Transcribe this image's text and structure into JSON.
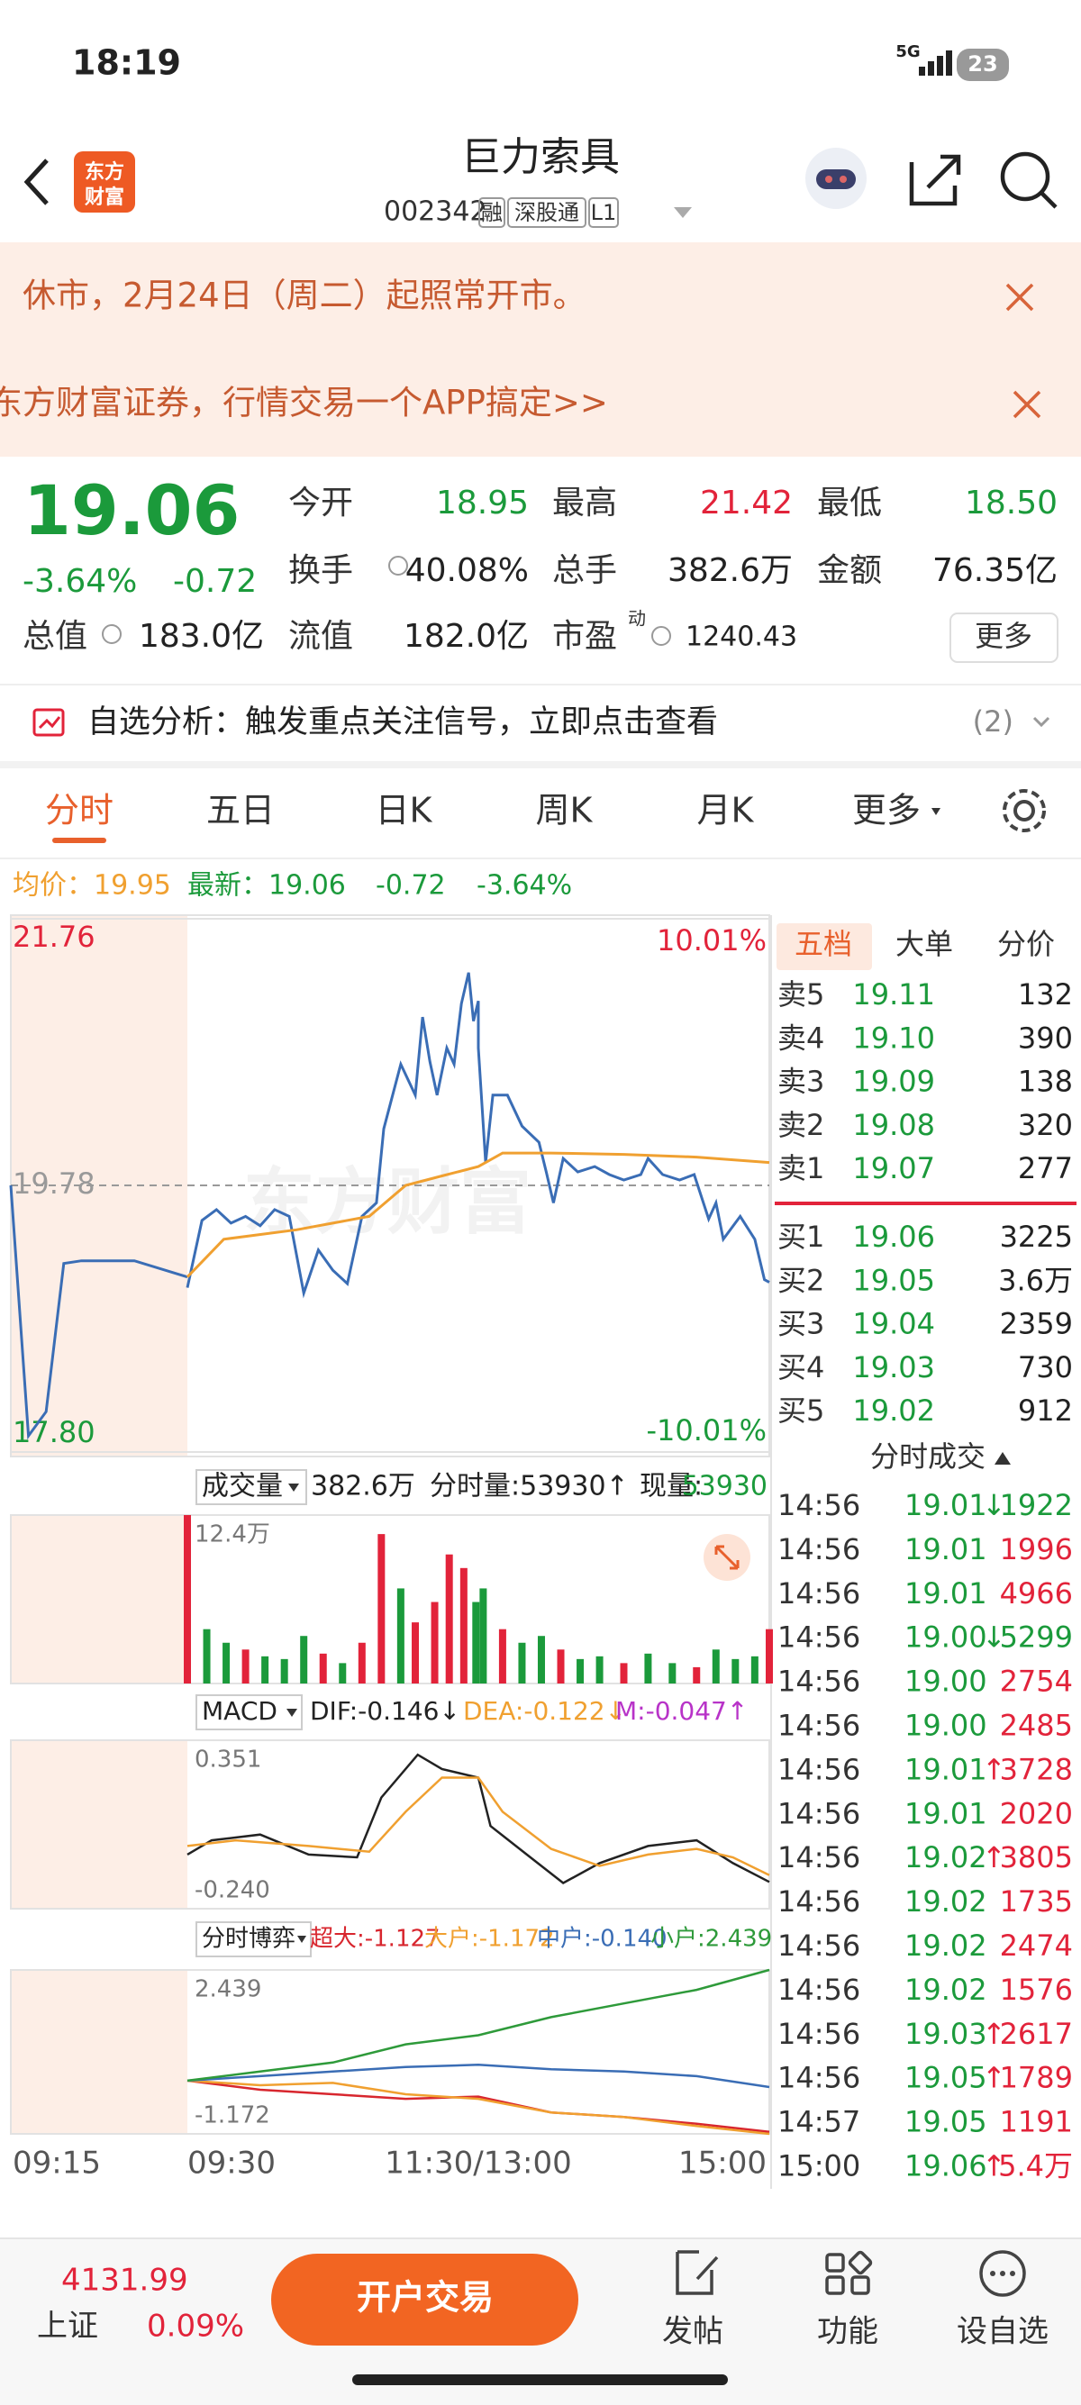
{
  "status": {
    "time": "18:19",
    "network": "5G",
    "battery": "23"
  },
  "header": {
    "logo": [
      "东方",
      "财富"
    ],
    "title": "巨力索具",
    "code": "002342",
    "tags": [
      "融",
      "深股通",
      "L1"
    ]
  },
  "banners": [
    "休市，2月24日（周二）起照常开市。",
    "东方财富证券，行情交易一个APP搞定>>"
  ],
  "quote": {
    "price": "19.06",
    "change_pct": "-3.64%",
    "change": "-0.72",
    "fields": [
      [
        "今开",
        "18.95"
      ],
      [
        "最高",
        "21.42"
      ],
      [
        "最低",
        "18.50"
      ],
      [
        "换手",
        "40.08%"
      ],
      [
        "总手",
        "382.6万"
      ],
      [
        "金额",
        "76.35亿"
      ],
      [
        "流值",
        "182.0亿"
      ],
      [
        "市盈",
        "1240.43"
      ]
    ],
    "total": [
      "总值",
      "183.0亿"
    ],
    "pe_sup": "动",
    "more": "更多"
  },
  "alert": {
    "text": "自选分析：触发重点关注信号，立即点击查看",
    "count": "(2)"
  },
  "tabs": [
    "分时",
    "五日",
    "日K",
    "周K",
    "月K",
    "更多"
  ],
  "info": {
    "avg": "均价：19.95",
    "last": "最新：19.06",
    "change": "-0.72",
    "pct": "-3.64%"
  },
  "chart_data": [
    {
      "type": "line",
      "watermark": "东方财富",
      "ylim": [
        17.8,
        21.76
      ],
      "yticks": [
        {
          "value": 17.8,
          "label": "17.80"
        },
        19.78,
        21.76
      ],
      "right_labels": [
        "10.01%",
        "-10.01%"
      ],
      "xlabels": [
        "09:15",
        "09:30",
        "11:30/13:00",
        "15:00"
      ],
      "series": [
        {
          "color": "#3a6db5",
          "x": [
            "09:15",
            "09:16",
            "09:17",
            "09:18",
            "09:19",
            "09:22",
            "09:25"
          ],
          "values": [
            19.78,
            17.92,
            18.1,
            19.2,
            19.22,
            19.22,
            19.1
          ]
        },
        {
          "color": "#3a6db5",
          "x": [
            "09:30",
            "09:36",
            "09:42",
            "09:48",
            "09:54",
            "10:00",
            "10:06",
            "10:12",
            "10:18",
            "10:24",
            "10:30",
            "10:36",
            "10:42",
            "10:48",
            "10:51",
            "10:58",
            "11:04",
            "11:07",
            "11:10",
            "11:13",
            "11:17",
            "11:20",
            "11:23",
            "11:26",
            "11:28",
            "11:30",
            "13:00",
            "13:03",
            "13:06",
            "13:12",
            "13:18",
            "13:25",
            "13:28",
            "13:31",
            "13:35",
            "13:41",
            "13:48",
            "13:54",
            "14:00",
            "14:07",
            "14:10",
            "14:16",
            "14:23",
            "14:29",
            "14:35",
            "14:38",
            "14:41",
            "14:48",
            "14:54",
            "14:58",
            "15:00"
          ],
          "values": [
            19.02,
            19.52,
            19.6,
            19.5,
            19.55,
            19.48,
            19.6,
            19.55,
            18.98,
            19.3,
            19.15,
            19.05,
            19.55,
            19.65,
            20.2,
            20.68,
            20.45,
            21.03,
            20.7,
            20.45,
            20.8,
            20.68,
            21.13,
            21.36,
            21.0,
            21.15,
            20.8,
            19.95,
            20.45,
            20.45,
            20.22,
            20.1,
            19.88,
            19.65,
            19.98,
            19.88,
            19.92,
            19.86,
            19.82,
            19.86,
            19.98,
            19.86,
            19.82,
            19.86,
            19.53,
            19.65,
            19.38,
            19.55,
            19.38,
            19.08,
            19.06
          ]
        },
        {
          "color": "#f0a030",
          "x": [
            "09:30",
            "09:45",
            "10:15",
            "10:45",
            "11:00",
            "11:15",
            "11:30",
            "13:10",
            "13:30",
            "14:00",
            "14:30",
            "15:00"
          ],
          "values": [
            19.1,
            19.38,
            19.45,
            19.55,
            19.78,
            19.85,
            19.92,
            20.02,
            20.02,
            20.01,
            19.99,
            19.95
          ]
        }
      ]
    },
    {
      "type": "bar",
      "title": "成交量",
      "total": "382.6万",
      "period_vol": "分时量:53930↑",
      "cur_label": "现量:",
      "cur_value": "53930",
      "ylim": [
        0,
        124000
      ],
      "yticks": [
        {
          "value": 124000,
          "label": "12.4万"
        }
      ],
      "x": [
        "09:30",
        "09:38",
        "09:46",
        "09:54",
        "10:02",
        "10:10",
        "10:18",
        "10:26",
        "10:34",
        "10:42",
        "10:50",
        "10:58",
        "11:04",
        "11:12",
        "11:18",
        "11:24",
        "11:29",
        "13:02",
        "13:10",
        "13:18",
        "13:26",
        "13:34",
        "13:42",
        "13:50",
        "14:00",
        "14:10",
        "14:20",
        "14:30",
        "14:38",
        "14:46",
        "14:54",
        "15:00"
      ],
      "values": [
        124000,
        40000,
        30000,
        25000,
        20000,
        18000,
        35000,
        22000,
        15000,
        30000,
        110000,
        70000,
        45000,
        60000,
        95000,
        85000,
        60000,
        70000,
        40000,
        30000,
        35000,
        25000,
        18000,
        20000,
        15000,
        22000,
        15000,
        12000,
        25000,
        18000,
        20000,
        40000
      ],
      "colors": [
        "#e2233a",
        "#1b9a3b",
        "#1b9a3b",
        "#e2233a",
        "#1b9a3b",
        "#1b9a3b",
        "#1b9a3b",
        "#e2233a",
        "#1b9a3b",
        "#e2233a",
        "#e2233a",
        "#1b9a3b",
        "#e2233a",
        "#e2233a",
        "#e2233a",
        "#e2233a",
        "#1b9a3b",
        "#1b9a3b",
        "#e2233a",
        "#1b9a3b",
        "#1b9a3b",
        "#e2233a",
        "#1b9a3b",
        "#1b9a3b",
        "#e2233a",
        "#1b9a3b",
        "#1b9a3b",
        "#e2233a",
        "#1b9a3b",
        "#1b9a3b",
        "#1b9a3b",
        "#e2233a"
      ]
    },
    {
      "type": "line",
      "title": "MACD",
      "extra_label": "M:-0.047↑",
      "ylim": [
        -0.24,
        0.351
      ],
      "yticks": [
        {
          "value": -0.24,
          "label": "-0.240"
        },
        0.351
      ],
      "series": [
        {
          "name": "DIF:-0.146↓",
          "color": "#222222",
          "x": [
            "09:30",
            "09:40",
            "10:00",
            "10:20",
            "10:40",
            "10:50",
            "11:05",
            "11:15",
            "11:30",
            "13:05",
            "13:20",
            "13:35",
            "13:50",
            "14:10",
            "14:30",
            "14:45",
            "15:00"
          ],
          "values": [
            -0.05,
            0.0,
            0.02,
            -0.05,
            -0.06,
            0.15,
            0.3,
            0.25,
            0.22,
            0.05,
            -0.05,
            -0.15,
            -0.08,
            -0.02,
            0.0,
            -0.08,
            -0.146
          ]
        },
        {
          "name": "DEA:-0.122↓",
          "color": "#f0a030",
          "x": [
            "09:30",
            "09:50",
            "10:20",
            "10:45",
            "11:00",
            "11:15",
            "11:30",
            "13:10",
            "13:30",
            "13:50",
            "14:10",
            "14:30",
            "14:45",
            "15:00"
          ],
          "values": [
            -0.02,
            0.0,
            -0.02,
            -0.04,
            0.1,
            0.22,
            0.22,
            0.1,
            -0.03,
            -0.09,
            -0.05,
            -0.03,
            -0.06,
            -0.122
          ]
        }
      ]
    },
    {
      "type": "line",
      "title": "分时博弈",
      "ylim": [
        -1.172,
        2.439
      ],
      "yticks": [
        -1.172,
        2.439
      ],
      "series": [
        {
          "name": "超大:-1.127",
          "color": "#d8262e",
          "x": [
            "09:30",
            "10:00",
            "10:30",
            "11:00",
            "11:30",
            "13:30",
            "14:00",
            "14:30",
            "15:00"
          ],
          "values": [
            0,
            -0.2,
            -0.3,
            -0.4,
            -0.35,
            -0.7,
            -0.8,
            -0.95,
            -1.127
          ]
        },
        {
          "name": "大户:-1.172",
          "color": "#f0a030",
          "x": [
            "09:30",
            "10:00",
            "10:30",
            "11:00",
            "11:30",
            "13:30",
            "14:00",
            "14:30",
            "15:00"
          ],
          "values": [
            0,
            -0.1,
            -0.05,
            -0.3,
            -0.4,
            -0.7,
            -0.8,
            -1.0,
            -1.172
          ]
        },
        {
          "name": "中户:-0.140",
          "color": "#3a6db5",
          "x": [
            "09:30",
            "10:00",
            "10:30",
            "11:00",
            "11:30",
            "13:30",
            "14:00",
            "14:30",
            "15:00"
          ],
          "values": [
            0,
            0.1,
            0.2,
            0.3,
            0.35,
            0.25,
            0.2,
            0.1,
            -0.14
          ]
        },
        {
          "name": "小户:2.439",
          "color": "#2e9a3a",
          "x": [
            "09:30",
            "10:00",
            "10:30",
            "11:00",
            "11:30",
            "13:30",
            "14:00",
            "14:30",
            "15:00"
          ],
          "values": [
            0,
            0.2,
            0.4,
            0.8,
            1.0,
            1.4,
            1.7,
            2.0,
            2.439
          ]
        }
      ]
    }
  ],
  "order_book": {
    "tabs": [
      "五档",
      "大单",
      "分价"
    ],
    "asks": [
      [
        "卖5",
        "19.11",
        "132"
      ],
      [
        "卖4",
        "19.10",
        "390"
      ],
      [
        "卖3",
        "19.09",
        "138"
      ],
      [
        "卖2",
        "19.08",
        "320"
      ],
      [
        "卖1",
        "19.07",
        "277"
      ]
    ],
    "bids": [
      [
        "买1",
        "19.06",
        "3225"
      ],
      [
        "买2",
        "19.05",
        "3.6万"
      ],
      [
        "买3",
        "19.04",
        "2359"
      ],
      [
        "买4",
        "19.03",
        "730"
      ],
      [
        "买5",
        "19.02",
        "912"
      ]
    ]
  },
  "trades": {
    "title": "分时成交",
    "rows": [
      {
        "t": "14:56",
        "p": "19.01",
        "d": "↓",
        "v": "1922"
      },
      {
        "t": "14:56",
        "p": "19.01",
        "v": "1996"
      },
      {
        "t": "14:56",
        "p": "19.01",
        "v": "4966"
      },
      {
        "t": "14:56",
        "p": "19.00",
        "d": "↓",
        "v": "5299"
      },
      {
        "t": "14:56",
        "p": "19.00",
        "v": "2754"
      },
      {
        "t": "14:56",
        "p": "19.00",
        "v": "2485"
      },
      {
        "t": "14:56",
        "p": "19.01",
        "d": "↑",
        "v": "3728"
      },
      {
        "t": "14:56",
        "p": "19.01",
        "v": "2020"
      },
      {
        "t": "14:56",
        "p": "19.02",
        "d": "↑",
        "v": "3805"
      },
      {
        "t": "14:56",
        "p": "19.02",
        "v": "1735"
      },
      {
        "t": "14:56",
        "p": "19.02",
        "v": "2474"
      },
      {
        "t": "14:56",
        "p": "19.02",
        "v": "1576"
      },
      {
        "t": "14:56",
        "p": "19.03",
        "d": "↑",
        "v": "2617"
      },
      {
        "t": "14:56",
        "p": "19.05",
        "d": "↑",
        "v": "1789"
      },
      {
        "t": "14:57",
        "p": "19.05",
        "v": "1191"
      },
      {
        "t": "15:00",
        "p": "19.06",
        "d": "↑",
        "v": "5.4万"
      }
    ]
  },
  "bottom": {
    "index_value": "4131.99",
    "index_name": "上证",
    "index_change": "0.09%",
    "trade_button": "开户交易",
    "actions": [
      "发帖",
      "功能",
      "设自选"
    ]
  }
}
